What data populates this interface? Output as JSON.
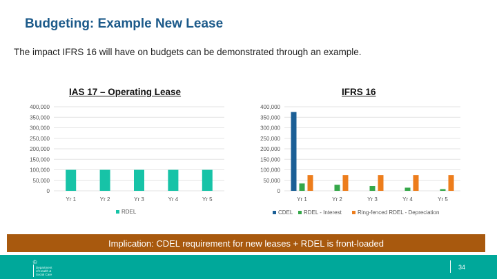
{
  "slide": {
    "title": "Budgeting: Example New Lease",
    "intro": "The impact IFRS 16 will have on budgets can be demonstrated through an example.",
    "banner": "Implication: CDEL requirement for new leases + RDEL is front-loaded",
    "page_number": "34",
    "logo_lines": [
      "Department",
      "of Health &",
      "Social Care"
    ]
  },
  "colors": {
    "title": "#1c5a8a",
    "rdel_operating": "#17c3a7",
    "cdel": "#1b5f96",
    "rdel_interest": "#36a84a",
    "depreciation": "#ed7d1c",
    "banner": "#a8590e",
    "footer": "#00a89a"
  },
  "chart_data": [
    {
      "type": "bar",
      "title": "IAS 17 – Operating Lease",
      "categories": [
        "Yr 1",
        "Yr 2",
        "Yr 3",
        "Yr 4",
        "Yr 5"
      ],
      "series": [
        {
          "name": "RDEL",
          "values": [
            100000,
            100000,
            100000,
            100000,
            100000
          ]
        }
      ],
      "ylim": [
        0,
        400000
      ],
      "yticks": [
        "400,000",
        "350,000",
        "300,000",
        "250,000",
        "200,000",
        "150,000",
        "100,000",
        "50,000",
        "0"
      ],
      "grid": true,
      "legend": "bottom"
    },
    {
      "type": "bar",
      "title": "IFRS 16",
      "categories": [
        "Yr 1",
        "Yr 2",
        "Yr 3",
        "Yr 4",
        "Yr 5"
      ],
      "series": [
        {
          "name": "CDEL",
          "values": [
            375000,
            0,
            0,
            0,
            0
          ]
        },
        {
          "name": "RDEL - Interest",
          "values": [
            35000,
            29000,
            23000,
            15000,
            8000
          ]
        },
        {
          "name": "Ring-fenced RDEL - Depreciation",
          "values": [
            75000,
            75000,
            75000,
            75000,
            75000
          ]
        }
      ],
      "ylim": [
        0,
        400000
      ],
      "yticks": [
        "400,000",
        "350,000",
        "300,000",
        "250,000",
        "200,000",
        "150,000",
        "100,000",
        "50,000",
        "0"
      ],
      "grid": true,
      "legend": "bottom"
    }
  ]
}
